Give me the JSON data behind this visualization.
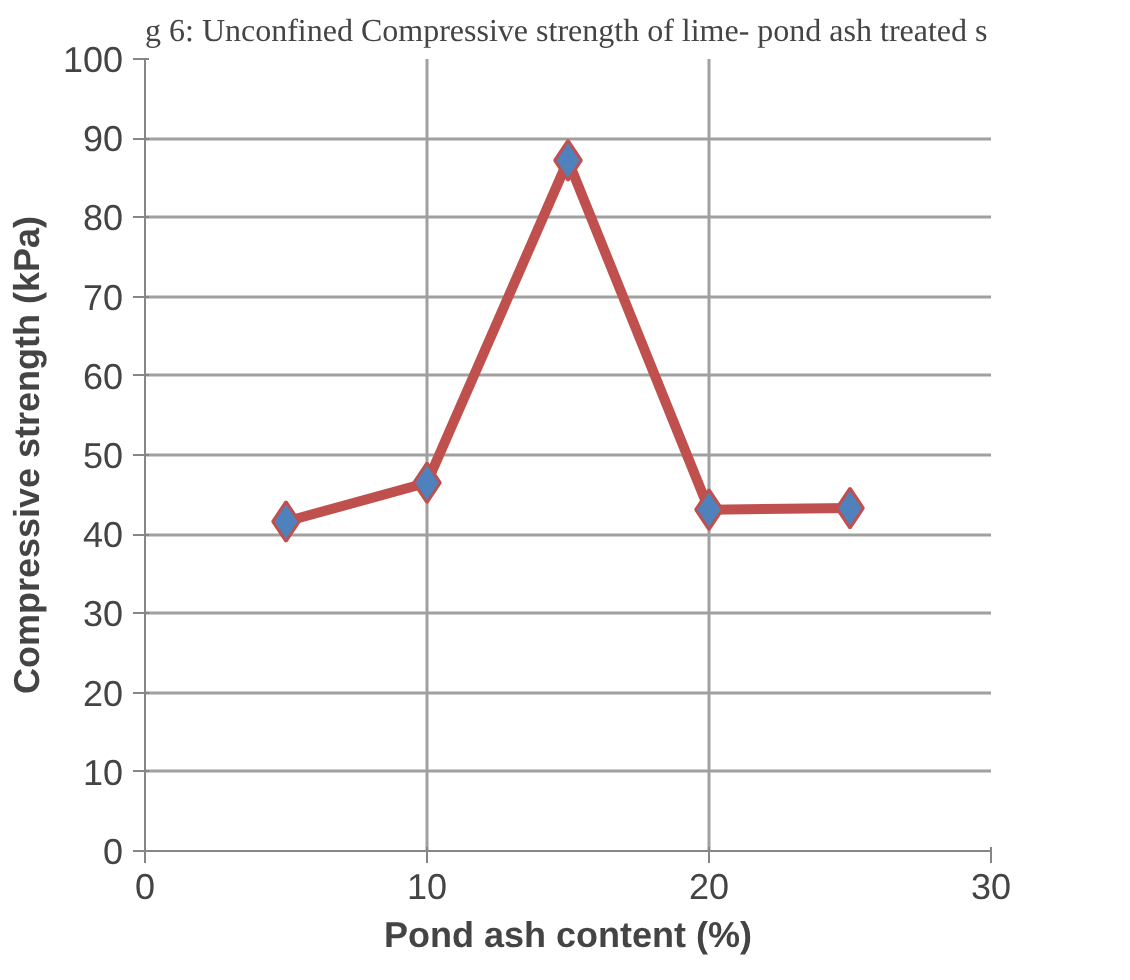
{
  "chart_data": {
    "type": "line",
    "title": "g 6: Unconfined Compressive strength of lime- pond ash treated s",
    "xlabel": "Pond ash content (%)",
    "ylabel": "Compressive strength (kPa)",
    "x": [
      5,
      10,
      15,
      20,
      25
    ],
    "series": [
      {
        "color": "#c0504d",
        "values": [
          41.6,
          46.5,
          87.2,
          43.1,
          43.3
        ]
      }
    ],
    "marker": "diamond",
    "xlim": [
      0,
      30
    ],
    "xticks": [
      0,
      10,
      20,
      30
    ],
    "ylim": [
      0,
      100
    ],
    "yticks": [
      0,
      10,
      20,
      30,
      40,
      50,
      60,
      70,
      80,
      90,
      100
    ],
    "grid": true
  }
}
